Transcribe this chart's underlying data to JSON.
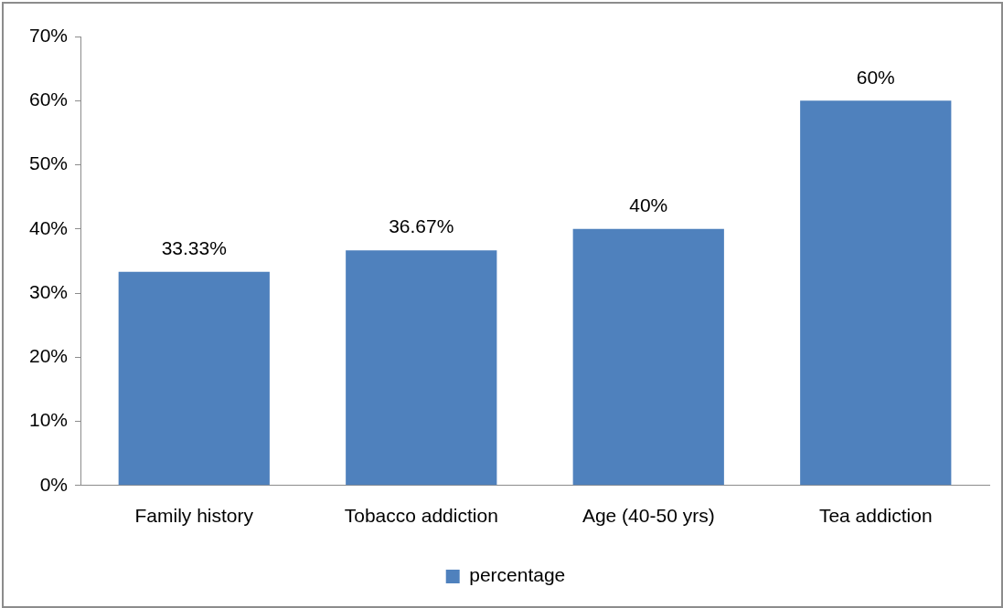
{
  "chart_data": {
    "type": "bar",
    "categories": [
      "Family history",
      "Tobacco addiction",
      "Age (40-50 yrs)",
      "Tea addiction"
    ],
    "series": [
      {
        "name": "percentage",
        "color": "#4f81bd",
        "values": [
          33.33,
          36.67,
          40,
          60
        ],
        "value_labels": [
          "33.33%",
          "36.67%",
          "40%",
          "60%"
        ]
      }
    ],
    "ylim": [
      0,
      70
    ],
    "yticks": [
      {
        "value": 0,
        "label": "0%"
      },
      {
        "value": 10,
        "label": "10%"
      },
      {
        "value": 20,
        "label": "20%"
      },
      {
        "value": 30,
        "label": "30%"
      },
      {
        "value": 40,
        "label": "40%"
      },
      {
        "value": 50,
        "label": "50%"
      },
      {
        "value": 60,
        "label": "60%"
      },
      {
        "value": 70,
        "label": "70%"
      }
    ],
    "grid": false,
    "legend": "bottom"
  }
}
